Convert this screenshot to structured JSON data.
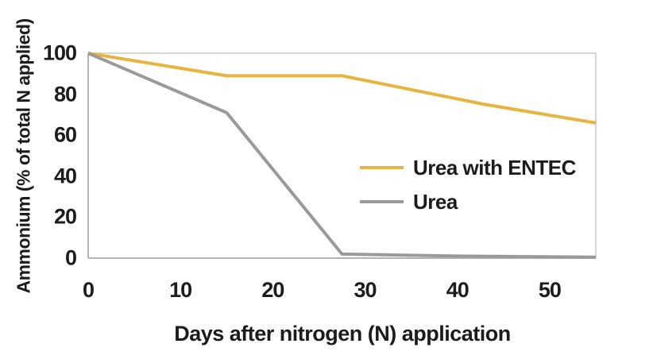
{
  "chart_data": {
    "type": "line",
    "title": "",
    "xlabel": "Days after nitrogen (N) application",
    "ylabel": "Ammonium (% of total N applied)",
    "xlim": [
      0,
      55
    ],
    "ylim": [
      0,
      100
    ],
    "x_ticks": [
      0,
      10,
      20,
      30,
      40,
      50
    ],
    "y_ticks": [
      0,
      20,
      40,
      60,
      80,
      100
    ],
    "grid": false,
    "legend_position": "inside-right",
    "series": [
      {
        "name": "Urea with ENTEC",
        "color": "#E8B440",
        "x": [
          0,
          15,
          27.5,
          43,
          55
        ],
        "values": [
          100,
          89,
          89,
          75,
          66
        ]
      },
      {
        "name": "Urea",
        "color": "#9A9A9C",
        "x": [
          0,
          15,
          27.5,
          40,
          55
        ],
        "values": [
          100,
          71,
          2,
          1,
          0.5
        ]
      }
    ]
  },
  "colors": {
    "frame_light": "#c9c9c9",
    "frame_dark": "#b3b3b3",
    "background": "#ffffff",
    "text": "#1c1c1c"
  }
}
